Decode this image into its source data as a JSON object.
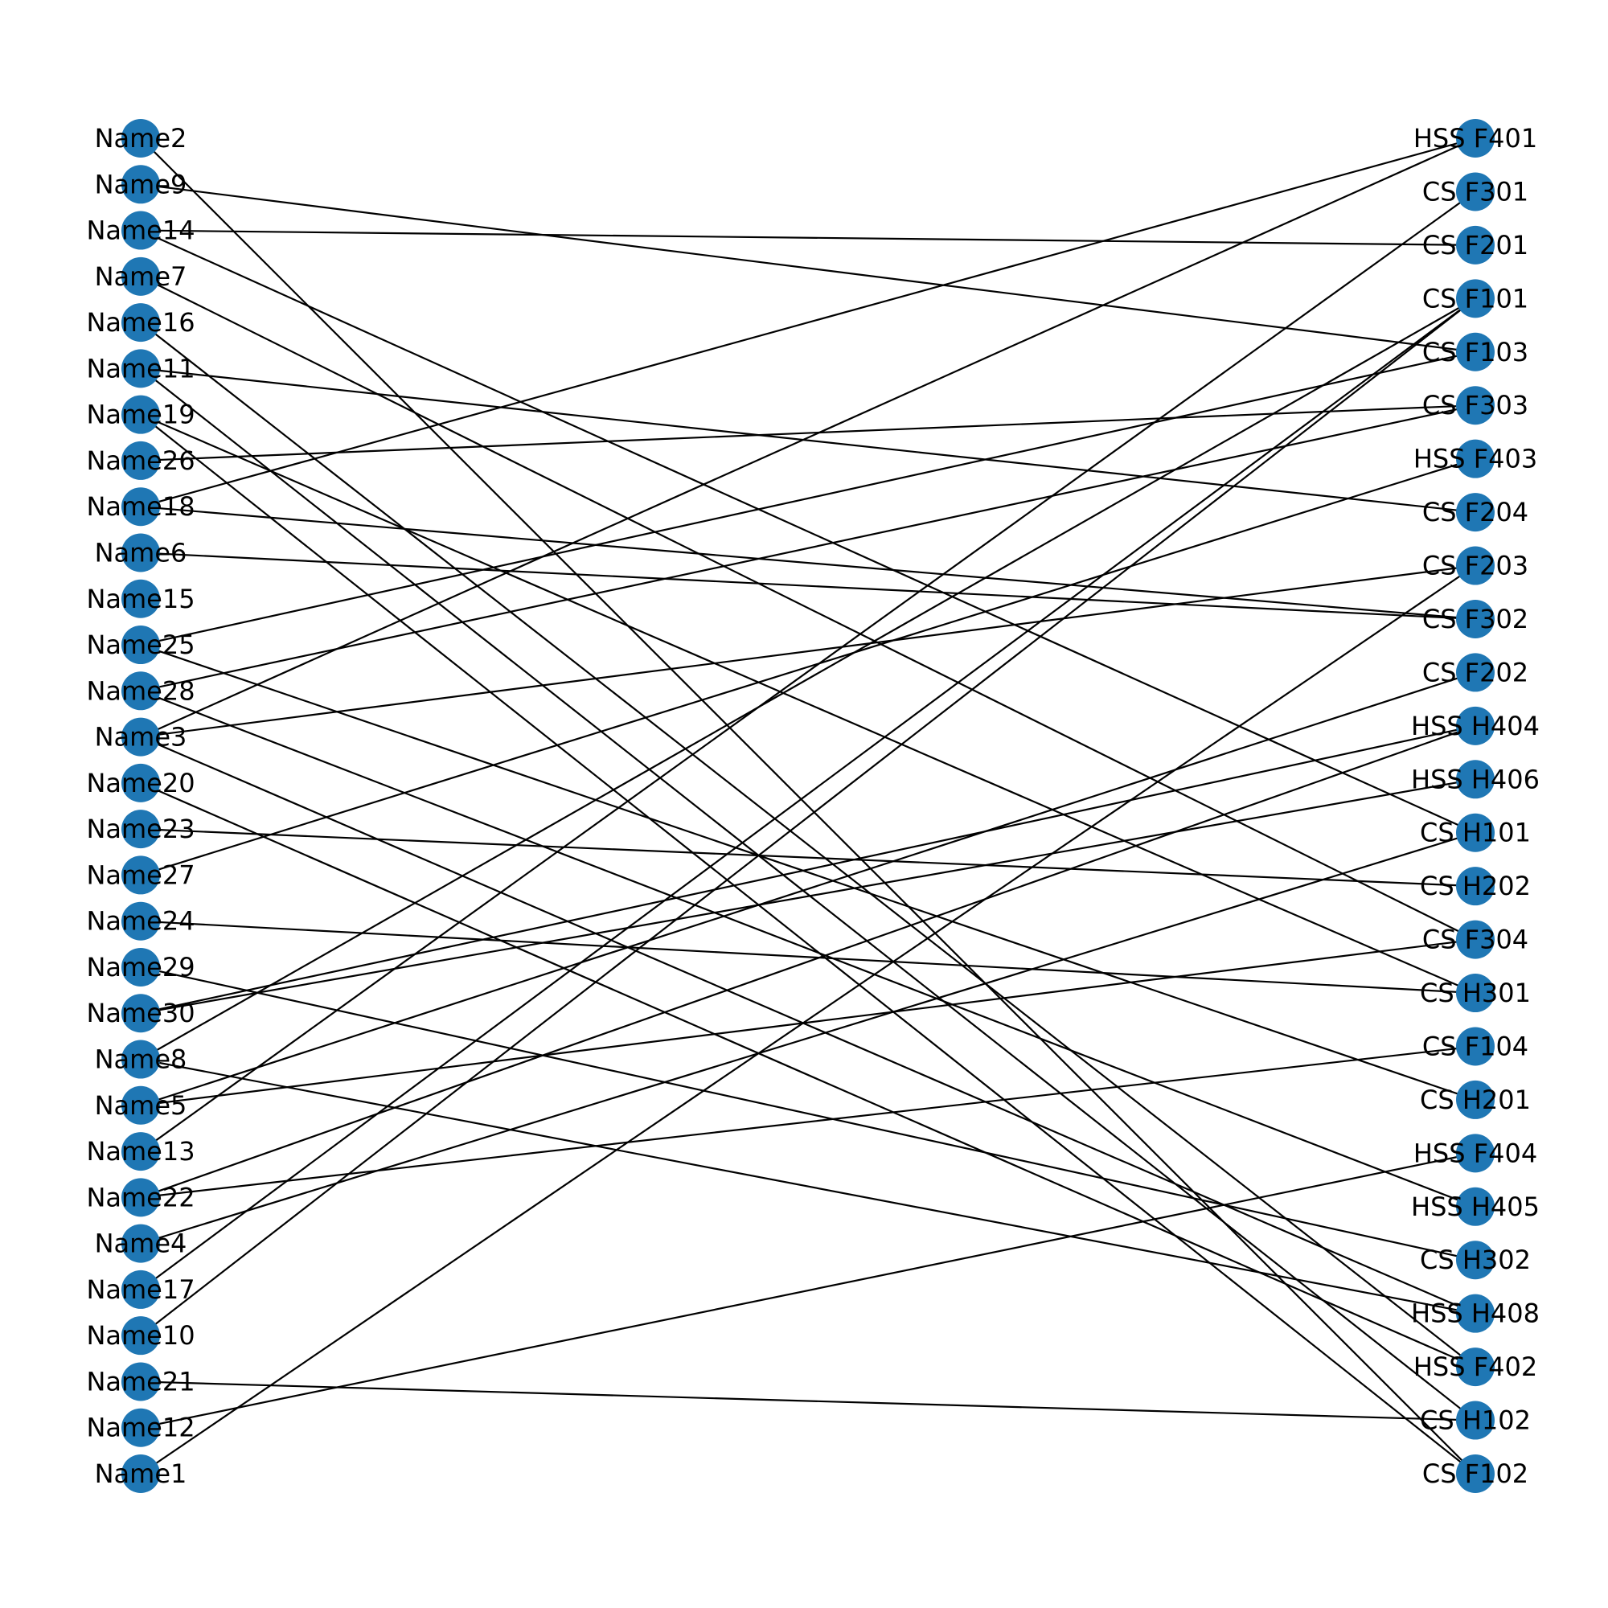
{
  "graph": {
    "type": "bipartite",
    "node_color": "#1f77b4",
    "edge_color": "#000000",
    "left_nodes": [
      "Name2",
      "Name9",
      "Name14",
      "Name7",
      "Name16",
      "Name11",
      "Name19",
      "Name26",
      "Name18",
      "Name6",
      "Name15",
      "Name25",
      "Name28",
      "Name3",
      "Name20",
      "Name23",
      "Name27",
      "Name24",
      "Name29",
      "Name30",
      "Name8",
      "Name5",
      "Name13",
      "Name22",
      "Name4",
      "Name17",
      "Name10",
      "Name21",
      "Name12",
      "Name1"
    ],
    "right_nodes": [
      "HSS F401",
      "CS F301",
      "CS F201",
      "CS F101",
      "CS F103",
      "CS F303",
      "HSS F403",
      "CS F204",
      "CS F203",
      "CS F302",
      "CS F202",
      "HSS H404",
      "HSS H406",
      "CS H101",
      "CS H202",
      "CS F304",
      "CS H301",
      "CS F104",
      "CS H201",
      "HSS F404",
      "HSS H405",
      "CS H302",
      "HSS H408",
      "HSS F402",
      "CS H102",
      "CS F102"
    ],
    "edges": [
      [
        "Name2",
        "CS F102"
      ],
      [
        "Name9",
        "CS F103"
      ],
      [
        "Name14",
        "CS F201"
      ],
      [
        "Name14",
        "CS H101"
      ],
      [
        "Name7",
        "CS F304"
      ],
      [
        "Name16",
        "HSS F402"
      ],
      [
        "Name11",
        "CS F204"
      ],
      [
        "Name11",
        "CS H102"
      ],
      [
        "Name19",
        "CS H301"
      ],
      [
        "Name19",
        "CS F102"
      ],
      [
        "Name26",
        "CS F303"
      ],
      [
        "Name18",
        "HSS F401"
      ],
      [
        "Name18",
        "CS F302"
      ],
      [
        "Name6",
        "CS F302"
      ],
      [
        "Name25",
        "CS F103"
      ],
      [
        "Name25",
        "CS H201"
      ],
      [
        "Name28",
        "CS F303"
      ],
      [
        "Name28",
        "HSS H405"
      ],
      [
        "Name3",
        "HSS F401"
      ],
      [
        "Name3",
        "CS F203"
      ],
      [
        "Name3",
        "HSS H408"
      ],
      [
        "Name20",
        "HSS F402"
      ],
      [
        "Name23",
        "CS H202"
      ],
      [
        "Name27",
        "HSS F403"
      ],
      [
        "Name24",
        "CS H301"
      ],
      [
        "Name29",
        "CS H302"
      ],
      [
        "Name30",
        "HSS H404"
      ],
      [
        "Name30",
        "HSS H406"
      ],
      [
        "Name8",
        "CS F101"
      ],
      [
        "Name8",
        "HSS H408"
      ],
      [
        "Name5",
        "CS F202"
      ],
      [
        "Name5",
        "CS F304"
      ],
      [
        "Name13",
        "CS F301"
      ],
      [
        "Name22",
        "HSS H404"
      ],
      [
        "Name22",
        "CS F104"
      ],
      [
        "Name4",
        "CS H101"
      ],
      [
        "Name17",
        "CS F101"
      ],
      [
        "Name10",
        "CS F101"
      ],
      [
        "Name21",
        "CS H102"
      ],
      [
        "Name12",
        "HSS F404"
      ],
      [
        "Name1",
        "CS F203"
      ]
    ]
  }
}
